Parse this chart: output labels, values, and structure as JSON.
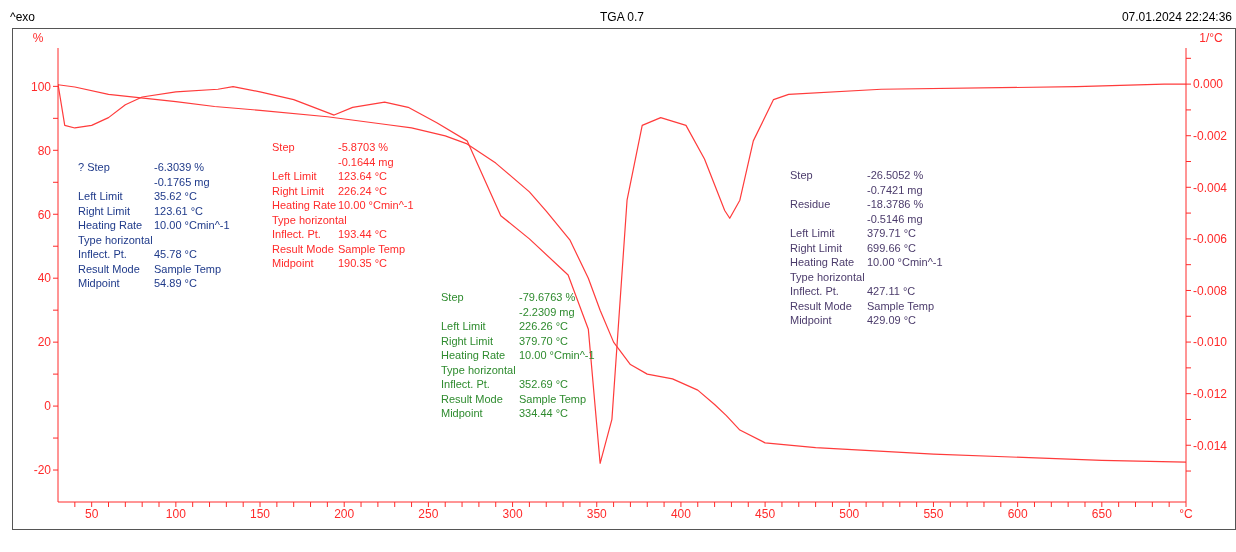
{
  "chart_data": {
    "type": "line",
    "title": "TGA 0.7",
    "ylabel": "%",
    "y2label": "1/°C",
    "annotations": [
      "^exo",
      "07.01.2024 22:24:36",
      "? Step\t-6.3039 %\n\t-0.1765 mg\nLeft Limit\t35.62 °C\nRight Limit\t123.61 °C\nHeating Rate\t10.00 °Cmin^-1\nType horizontal\t\nInflect. Pt.\t45.78 °C\nResult Mode\tSample Temp\nMidpoint\t54.89 °C",
      "Step\t-5.8703 %\n\t-0.1644 mg\nLeft Limit\t123.64 °C\nRight Limit\t226.24 °C\nHeating Rate\t10.00 °Cmin^-1\nType horizontal\t\nInflect. Pt.\t193.44 °C\nResult Mode\tSample Temp\nMidpoint\t190.35 °C",
      "Step\t-79.6763 %\n\t-2.2309 mg\nLeft Limit\t226.26 °C\nRight Limit\t379.70 °C\nHeating Rate\t10.00 °Cmin^-1\nType horizontal\t\nInflect. Pt.\t352.69 °C\nResult Mode\tSample Temp\nMidpoint\t334.44 °C",
      "Step\t-26.5052 %\n\t-0.7421 mg\nResidue\t-18.3786 %\n\t-0.5146 mg\nLeft Limit\t379.71 °C\nRight Limit\t699.66 °C\nHeating Rate\t10.00 °Cmin^-1\nType horizontal\t\nInflect. Pt.\t427.11 °C\nResult Mode\tSample Temp\nMidpoint\t429.09 °C"
    ],
    "xlim": [
      30,
      700
    ],
    "xticks": [
      {
        "value": 40,
        "label": null
      },
      50,
      {
        "value": 60,
        "label": null
      },
      {
        "value": 70,
        "label": null
      },
      {
        "value": 80,
        "label": null
      },
      {
        "value": 90,
        "label": null
      },
      100,
      {
        "value": 110,
        "label": null
      },
      {
        "value": 120,
        "label": null
      },
      {
        "value": 130,
        "label": null
      },
      {
        "value": 140,
        "label": null
      },
      150,
      {
        "value": 160,
        "label": null
      },
      {
        "value": 170,
        "label": null
      },
      {
        "value": 180,
        "label": null
      },
      {
        "value": 190,
        "label": null
      },
      200,
      {
        "value": 210,
        "label": null
      },
      {
        "value": 220,
        "label": null
      },
      {
        "value": 230,
        "label": null
      },
      {
        "value": 240,
        "label": null
      },
      250,
      {
        "value": 260,
        "label": null
      },
      {
        "value": 270,
        "label": null
      },
      {
        "value": 280,
        "label": null
      },
      {
        "value": 290,
        "label": null
      },
      300,
      {
        "value": 310,
        "label": null
      },
      {
        "value": 320,
        "label": null
      },
      {
        "value": 330,
        "label": null
      },
      {
        "value": 340,
        "label": null
      },
      350,
      {
        "value": 360,
        "label": null
      },
      {
        "value": 370,
        "label": null
      },
      {
        "value": 380,
        "label": null
      },
      {
        "value": 390,
        "label": null
      },
      400,
      {
        "value": 410,
        "label": null
      },
      {
        "value": 420,
        "label": null
      },
      {
        "value": 430,
        "label": null
      },
      {
        "value": 440,
        "label": null
      },
      450,
      {
        "value": 460,
        "label": null
      },
      {
        "value": 470,
        "label": null
      },
      {
        "value": 480,
        "label": null
      },
      {
        "value": 490,
        "label": null
      },
      500,
      {
        "value": 510,
        "label": null
      },
      {
        "value": 520,
        "label": null
      },
      {
        "value": 530,
        "label": null
      },
      {
        "value": 540,
        "label": null
      },
      550,
      {
        "value": 560,
        "label": null
      },
      {
        "value": 570,
        "label": null
      },
      {
        "value": 580,
        "label": null
      },
      {
        "value": 590,
        "label": null
      },
      600,
      {
        "value": 610,
        "label": null
      },
      {
        "value": 620,
        "label": null
      },
      {
        "value": 630,
        "label": null
      },
      {
        "value": 640,
        "label": null
      },
      650,
      {
        "value": 660,
        "label": null
      },
      {
        "value": 670,
        "label": null
      },
      {
        "value": 680,
        "label": null
      },
      {
        "value": 690,
        "label": null
      },
      {
        "value": 700,
        "label": "°C"
      }
    ],
    "ylim": [
      -30,
      112
    ],
    "yticks": [
      -20,
      {
        "value": -10,
        "label": null
      },
      0,
      {
        "value": 10,
        "label": null
      },
      20,
      {
        "value": 30,
        "label": null
      },
      40,
      {
        "value": 50,
        "label": null
      },
      60,
      {
        "value": 70,
        "label": null
      },
      80,
      {
        "value": 90,
        "label": null
      },
      100
    ],
    "y2lim": [
      -0.0162,
      0.0014
    ],
    "y2ticks": [
      {
        "value": -0.015,
        "label": null
      },
      {
        "value": -0.014,
        "label": "-0.014"
      },
      {
        "value": -0.013,
        "label": null
      },
      {
        "value": -0.012,
        "label": "-0.012"
      },
      {
        "value": -0.011,
        "label": null
      },
      {
        "value": -0.01,
        "label": "-0.010"
      },
      {
        "value": -0.009,
        "label": null
      },
      {
        "value": -0.008,
        "label": "-0.008"
      },
      {
        "value": -0.007,
        "label": null
      },
      {
        "value": -0.006,
        "label": "-0.006"
      },
      {
        "value": -0.005,
        "label": null
      },
      {
        "value": -0.004,
        "label": "-0.004"
      },
      {
        "value": -0.003,
        "label": null
      },
      {
        "value": -0.002,
        "label": "-0.002"
      },
      {
        "value": -0.001,
        "label": null
      },
      {
        "value": 0,
        "label": "0.000"
      },
      {
        "value": 0.001,
        "label": null
      }
    ],
    "grid": false,
    "legend": false,
    "marker": "none",
    "line_style": "solid",
    "series": [
      {
        "color": "#ff3b3b",
        "x": [
          30,
          40,
          60,
          100,
          123,
          150,
          190,
          226,
          240,
          260,
          273,
          290,
          310,
          320,
          334,
          345,
          352,
          360,
          370,
          380,
          395,
          410,
          420,
          427,
          435,
          450,
          480,
          550,
          650,
          700
        ],
        "values": [
          100.5,
          99.8,
          97.5,
          95.2,
          93.7,
          92.5,
          90.5,
          88,
          87,
          84.5,
          82,
          76,
          67,
          61,
          52,
          40,
          30,
          20,
          13,
          10,
          8.5,
          5,
          0.5,
          -3,
          -7.5,
          -11.5,
          -13,
          -15,
          -17,
          -17.5
        ]
      },
      {
        "color": "#ff3b3b",
        "axis": "y2",
        "x": [
          30,
          34,
          40,
          50,
          60,
          70,
          80,
          100,
          125,
          134,
          150,
          170,
          182,
          194,
          205,
          224,
          238,
          255,
          273,
          293,
          310,
          333,
          345,
          352,
          359,
          368,
          377,
          388,
          403,
          414,
          426,
          429,
          435,
          443,
          455,
          464,
          519,
          635,
          687,
          700
        ],
        "values": [
          0,
          -0.0016,
          -0.0017,
          -0.0016,
          -0.0013,
          -0.0008,
          -0.0005,
          -0.0003,
          -0.0002,
          -0.0001,
          -0.0003,
          -0.0006,
          -0.0009,
          -0.0012,
          -0.0009,
          -0.0007,
          -0.0009,
          -0.0015,
          -0.0022,
          -0.0051,
          -0.006,
          -0.0074,
          -0.0095,
          -0.0147,
          -0.013,
          -0.0045,
          -0.0016,
          -0.0013,
          -0.0016,
          -0.0029,
          -0.0049,
          -0.0052,
          -0.0045,
          -0.0022,
          -0.0006,
          -0.0004,
          -0.0002,
          -0.0001,
          0,
          0
        ]
      }
    ]
  }
}
